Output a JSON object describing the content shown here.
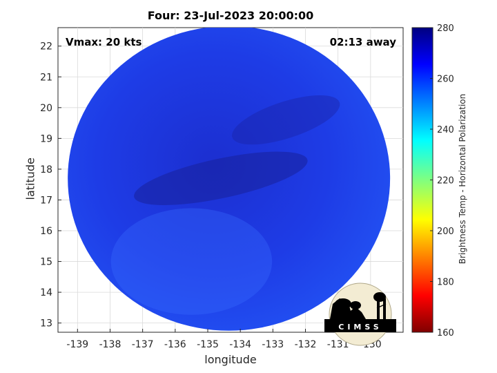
{
  "title": "Four: 23-Jul-2023 20:00:00",
  "vmax_label": "Vmax: 20 kts",
  "time_away": "02:13 away",
  "logo_text": "CIMSS",
  "chart_data": {
    "type": "heatmap",
    "title": "Four: 23-Jul-2023 20:00:00",
    "xlabel": "longitude",
    "ylabel": "latitude",
    "xlim": [
      -139.6,
      -129.0
    ],
    "ylim": [
      12.7,
      22.6
    ],
    "xticks": [
      -139,
      -138,
      -137,
      -136,
      -135,
      -134,
      -133,
      -132,
      -131,
      -130
    ],
    "yticks": [
      13,
      14,
      15,
      16,
      17,
      18,
      19,
      20,
      21,
      22
    ],
    "grid": true,
    "colorbar": {
      "label": "Brightness Temp - Horizontal Polarization",
      "range": [
        160,
        280
      ],
      "ticks": [
        160,
        180,
        200,
        220,
        240,
        260,
        280
      ],
      "colormap": "jet"
    },
    "swath": {
      "center_lon": -134.35,
      "center_lat": 17.7,
      "radius_deg": 4.95
    },
    "values_summary": "Nearly all pixels in the swath are about 255-272 K (blue to dark blue)"
  },
  "colors": {
    "background": "#ffffff",
    "grid": "#d9d9d9",
    "axes": "#262626"
  }
}
